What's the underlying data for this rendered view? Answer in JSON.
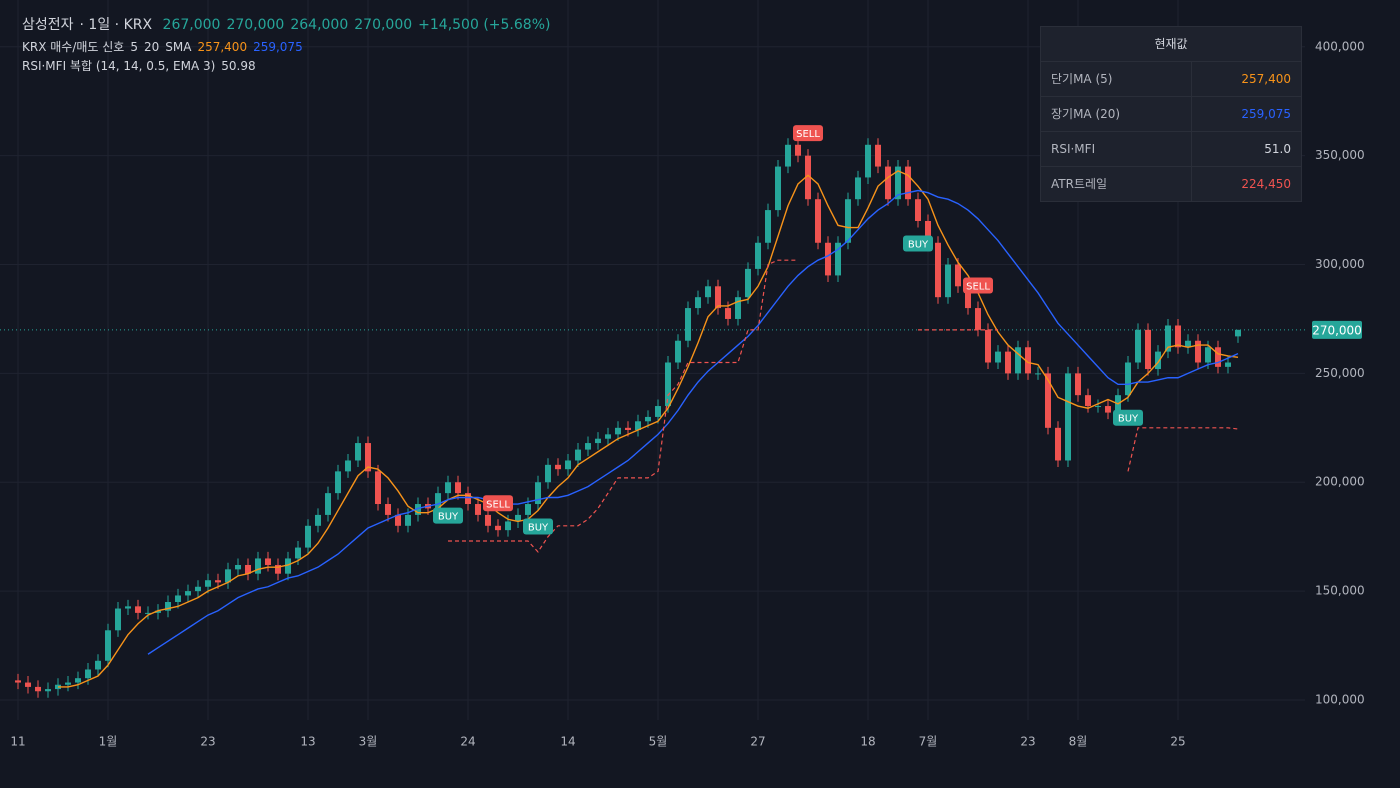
{
  "chart_data": {
    "type": "candlestick",
    "header": {
      "name": "삼성전자",
      "interval": "· 1일 · KRX",
      "open": "267,000",
      "high": "270,000",
      "low": "264,000",
      "close": "270,000",
      "change": "+14,500 (+5.68%)"
    },
    "legend": {
      "name": "KRX 매수/매도 신호",
      "short_len": "5",
      "long_len": "20",
      "ma_type": "SMA",
      "short_value": "257,400",
      "long_value": "259,075"
    },
    "indicator": {
      "name": "RSI·MFI 복합 (14, 14, 0.5, EMA 3)",
      "value": "50.98"
    },
    "table": {
      "title": "현재값",
      "rows": [
        [
          "단기MA (5)",
          "257,400"
        ],
        [
          "장기MA (20)",
          "259,075"
        ],
        [
          "RSI·MFI",
          "51.0"
        ],
        [
          "ATR트레일",
          "224,450"
        ]
      ]
    },
    "up_color": "#26a69a",
    "down_color": "#ef5350",
    "ylim": [
      90800,
      421500
    ],
    "yticks": [
      {
        "value": 100000,
        "label": "100,000"
      },
      {
        "value": 150000,
        "label": "150,000"
      },
      {
        "value": 200000,
        "label": "200,000"
      },
      {
        "value": 250000,
        "label": "250,000"
      },
      {
        "value": 300000,
        "label": "300,000"
      },
      {
        "value": 350000,
        "label": "350,000"
      },
      {
        "value": 400000,
        "label": "400,000"
      }
    ],
    "grid": true,
    "last_price": {
      "value": 270000,
      "label": "270,000"
    },
    "categories": [
      "11",
      null,
      null,
      null,
      null,
      null,
      null,
      null,
      null,
      "1월",
      null,
      null,
      null,
      null,
      null,
      null,
      null,
      null,
      null,
      "23",
      null,
      null,
      null,
      null,
      null,
      null,
      null,
      null,
      null,
      "13",
      null,
      null,
      null,
      null,
      null,
      "3월",
      null,
      null,
      null,
      null,
      null,
      null,
      null,
      null,
      null,
      "24",
      null,
      null,
      null,
      null,
      null,
      null,
      null,
      null,
      null,
      "14",
      null,
      null,
      null,
      null,
      null,
      null,
      null,
      null,
      "5월",
      null,
      null,
      null,
      null,
      null,
      null,
      null,
      null,
      null,
      "27",
      null,
      null,
      null,
      null,
      null,
      null,
      null,
      null,
      null,
      null,
      "18",
      null,
      null,
      null,
      null,
      null,
      "7월",
      null,
      null,
      null,
      null,
      null,
      null,
      null,
      null,
      null,
      "23",
      null,
      null,
      null,
      null,
      "8월",
      null,
      null,
      null,
      null,
      null,
      null,
      null,
      null,
      null,
      "25",
      null,
      null,
      null,
      null,
      null,
      null
    ],
    "open": [
      109000,
      108000,
      106000,
      104000,
      105000,
      107000,
      108000,
      110000,
      114000,
      118000,
      132000,
      142000,
      143000,
      140000,
      140000,
      141000,
      145000,
      148000,
      150000,
      152000,
      155000,
      154000,
      160000,
      162000,
      158000,
      165000,
      162000,
      158000,
      165000,
      170000,
      180000,
      185000,
      195000,
      205000,
      210000,
      218000,
      205000,
      190000,
      185000,
      180000,
      185000,
      190000,
      188000,
      195000,
      200000,
      195000,
      190000,
      185000,
      180000,
      178000,
      182000,
      185000,
      190000,
      200000,
      208000,
      206000,
      210000,
      215000,
      218000,
      220000,
      222000,
      225000,
      224000,
      228000,
      230000,
      235000,
      255000,
      265000,
      280000,
      285000,
      290000,
      280000,
      275000,
      285000,
      298000,
      310000,
      325000,
      345000,
      355000,
      350000,
      330000,
      310000,
      295000,
      310000,
      330000,
      340000,
      355000,
      345000,
      330000,
      345000,
      330000,
      320000,
      310000,
      285000,
      300000,
      290000,
      280000,
      270000,
      255000,
      260000,
      250000,
      262000,
      250000,
      250000,
      225000,
      210000,
      250000,
      240000,
      235000,
      235000,
      232000,
      240000,
      255000,
      270000,
      252000,
      260000,
      272000,
      262000,
      265000,
      255000,
      262000,
      253000,
      267000
    ],
    "high": [
      112000,
      111000,
      109000,
      108000,
      110000,
      111000,
      113000,
      117000,
      121000,
      135000,
      145000,
      146000,
      146000,
      143000,
      144000,
      148000,
      151000,
      153000,
      155000,
      158000,
      158000,
      163000,
      165000,
      165000,
      168000,
      168000,
      165000,
      168000,
      173000,
      183000,
      188000,
      198000,
      208000,
      213000,
      221000,
      221000,
      208000,
      193000,
      188000,
      188000,
      193000,
      193000,
      198000,
      203000,
      203000,
      198000,
      193000,
      188000,
      183000,
      185000,
      188000,
      193000,
      203000,
      211000,
      211000,
      213000,
      218000,
      221000,
      223000,
      225000,
      228000,
      228000,
      231000,
      233000,
      238000,
      258000,
      268000,
      283000,
      288000,
      293000,
      293000,
      283000,
      288000,
      301000,
      313000,
      328000,
      348000,
      358000,
      358000,
      353000,
      333000,
      313000,
      313000,
      333000,
      343000,
      358000,
      358000,
      348000,
      348000,
      348000,
      333000,
      323000,
      313000,
      303000,
      303000,
      293000,
      283000,
      273000,
      263000,
      263000,
      265000,
      265000,
      253000,
      253000,
      228000,
      253000,
      253000,
      243000,
      238000,
      238000,
      243000,
      258000,
      273000,
      273000,
      263000,
      275000,
      275000,
      268000,
      268000,
      265000,
      265000,
      258000,
      270000
    ],
    "low": [
      105000,
      103000,
      101000,
      101000,
      102000,
      104000,
      105000,
      107000,
      111000,
      115000,
      129000,
      139000,
      137000,
      137000,
      137000,
      138000,
      142000,
      145000,
      147000,
      149000,
      151000,
      151000,
      157000,
      155000,
      155000,
      159000,
      155000,
      155000,
      162000,
      167000,
      177000,
      182000,
      192000,
      202000,
      207000,
      202000,
      187000,
      182000,
      177000,
      177000,
      182000,
      185000,
      185000,
      192000,
      192000,
      187000,
      182000,
      177000,
      175000,
      175000,
      179000,
      182000,
      187000,
      197000,
      203000,
      203000,
      207000,
      212000,
      215000,
      217000,
      219000,
      221000,
      221000,
      225000,
      227000,
      232000,
      252000,
      262000,
      277000,
      282000,
      277000,
      272000,
      272000,
      282000,
      295000,
      307000,
      322000,
      342000,
      347000,
      327000,
      307000,
      292000,
      292000,
      307000,
      327000,
      337000,
      342000,
      327000,
      327000,
      327000,
      317000,
      307000,
      282000,
      282000,
      287000,
      277000,
      267000,
      252000,
      252000,
      247000,
      247000,
      247000,
      247000,
      222000,
      207000,
      207000,
      237000,
      232000,
      232000,
      229000,
      229000,
      237000,
      252000,
      249000,
      249000,
      257000,
      259000,
      259000,
      252000,
      252000,
      250000,
      250000,
      264000
    ],
    "close": [
      108000,
      106000,
      104000,
      105000,
      107000,
      108000,
      110000,
      114000,
      118000,
      132000,
      142000,
      143000,
      140000,
      140000,
      141000,
      145000,
      148000,
      150000,
      152000,
      155000,
      154000,
      160000,
      162000,
      158000,
      165000,
      162000,
      158000,
      165000,
      170000,
      180000,
      185000,
      195000,
      205000,
      210000,
      218000,
      205000,
      190000,
      185000,
      180000,
      185000,
      190000,
      188000,
      195000,
      200000,
      195000,
      190000,
      185000,
      180000,
      178000,
      182000,
      185000,
      190000,
      200000,
      208000,
      206000,
      210000,
      215000,
      218000,
      220000,
      222000,
      225000,
      224000,
      228000,
      230000,
      235000,
      255000,
      265000,
      280000,
      285000,
      290000,
      280000,
      275000,
      285000,
      298000,
      310000,
      325000,
      345000,
      355000,
      350000,
      330000,
      310000,
      295000,
      310000,
      330000,
      340000,
      355000,
      345000,
      330000,
      345000,
      330000,
      320000,
      310000,
      285000,
      300000,
      290000,
      280000,
      270000,
      255000,
      260000,
      250000,
      262000,
      250000,
      250000,
      225000,
      210000,
      250000,
      240000,
      235000,
      235000,
      232000,
      240000,
      255000,
      270000,
      252000,
      260000,
      272000,
      262000,
      265000,
      255000,
      262000,
      253000,
      255000,
      270000
    ],
    "lines": [
      {
        "name": "단기MA (5)",
        "color": "#f7931a",
        "dashed": false,
        "values": [
          null,
          null,
          null,
          null,
          106000,
          106000,
          107000,
          109000,
          111000,
          116000,
          123000,
          130000,
          135000,
          139000,
          141000,
          142000,
          143000,
          145000,
          147000,
          150000,
          152000,
          154000,
          157000,
          158000,
          160000,
          161000,
          161000,
          162000,
          164000,
          167000,
          172000,
          179000,
          187000,
          195000,
          203000,
          207000,
          206000,
          202000,
          196000,
          189000,
          186000,
          186000,
          188000,
          192000,
          194000,
          194000,
          192000,
          190000,
          186000,
          183000,
          182000,
          183000,
          187000,
          193000,
          198000,
          202000,
          208000,
          211000,
          214000,
          217000,
          220000,
          222000,
          224000,
          226000,
          228000,
          234000,
          243000,
          253000,
          264000,
          276000,
          281000,
          281000,
          283000,
          284000,
          290000,
          299000,
          313000,
          327000,
          337000,
          341000,
          337000,
          327000,
          318000,
          317000,
          317000,
          326000,
          336000,
          340000,
          343000,
          341000,
          336000,
          330000,
          318000,
          309000,
          301000,
          295000,
          287000,
          277000,
          269000,
          263000,
          259000,
          255000,
          254000,
          247000,
          239000,
          237000,
          235000,
          234000,
          236000,
          238000,
          236000,
          239000,
          246000,
          250000,
          255000,
          262000,
          263000,
          262000,
          263000,
          263000,
          259000,
          258000,
          257400
        ]
      },
      {
        "name": "장기MA (20)",
        "color": "#2962ff",
        "dashed": false,
        "values": [
          null,
          null,
          null,
          null,
          null,
          null,
          null,
          null,
          null,
          null,
          null,
          null,
          null,
          121000,
          124000,
          127000,
          130000,
          133000,
          136000,
          139000,
          141000,
          144000,
          147000,
          149000,
          151000,
          152000,
          154000,
          156000,
          157000,
          159000,
          161000,
          164000,
          167000,
          171000,
          175000,
          179000,
          181000,
          183000,
          185000,
          186000,
          188000,
          189000,
          190000,
          192000,
          193000,
          193000,
          193000,
          192000,
          191000,
          190000,
          190000,
          191000,
          192000,
          193000,
          193000,
          194000,
          196000,
          198000,
          201000,
          204000,
          207000,
          210000,
          214000,
          218000,
          222000,
          227000,
          233000,
          240000,
          246000,
          251000,
          255000,
          259000,
          263000,
          267000,
          272000,
          278000,
          284000,
          290000,
          295000,
          299000,
          302000,
          304000,
          307000,
          311000,
          316000,
          321000,
          325000,
          328000,
          332000,
          333000,
          334000,
          333000,
          331000,
          330000,
          328000,
          325000,
          321000,
          316000,
          311000,
          305000,
          299000,
          293000,
          287000,
          280000,
          273000,
          268000,
          263000,
          258000,
          253000,
          248000,
          245000,
          245000,
          246000,
          246000,
          247000,
          248000,
          248000,
          250000,
          252000,
          254000,
          255000,
          257000,
          259075
        ]
      },
      {
        "name": "ATR트레일",
        "color": "#ef5350",
        "dashed": true,
        "values": [
          null,
          null,
          null,
          null,
          null,
          null,
          null,
          null,
          null,
          null,
          null,
          null,
          null,
          null,
          null,
          null,
          null,
          null,
          null,
          null,
          null,
          null,
          null,
          null,
          null,
          null,
          null,
          null,
          null,
          null,
          null,
          null,
          null,
          null,
          null,
          null,
          null,
          null,
          null,
          null,
          null,
          null,
          null,
          173000,
          173000,
          173000,
          173000,
          173000,
          173000,
          173000,
          173000,
          173000,
          168000,
          175000,
          180000,
          180000,
          180000,
          183000,
          188000,
          195000,
          202000,
          202000,
          202000,
          202000,
          205000,
          240000,
          245000,
          255000,
          255000,
          255000,
          255000,
          255000,
          255000,
          270000,
          270000,
          300000,
          302000,
          302000,
          302000,
          null,
          null,
          null,
          null,
          null,
          null,
          null,
          null,
          null,
          null,
          null,
          270000,
          270000,
          270000,
          270000,
          270000,
          270000,
          270000,
          270000,
          270000,
          null,
          null,
          null,
          null,
          null,
          null,
          null,
          null,
          null,
          null,
          null,
          null,
          205000,
          225000,
          225000,
          225000,
          225000,
          225000,
          225000,
          225000,
          225000,
          225000,
          225000,
          224450
        ]
      }
    ],
    "signals": [
      null,
      null,
      null,
      null,
      null,
      null,
      null,
      null,
      null,
      null,
      null,
      null,
      null,
      null,
      null,
      null,
      null,
      null,
      null,
      null,
      null,
      null,
      null,
      null,
      null,
      null,
      null,
      null,
      null,
      null,
      null,
      null,
      null,
      null,
      null,
      null,
      null,
      null,
      null,
      null,
      null,
      null,
      null,
      "BUY",
      null,
      null,
      null,
      null,
      "SELL",
      null,
      null,
      null,
      "BUY",
      null,
      null,
      null,
      null,
      null,
      null,
      null,
      null,
      null,
      null,
      null,
      null,
      null,
      null,
      null,
      null,
      null,
      null,
      null,
      null,
      null,
      null,
      null,
      null,
      null,
      null,
      "SELL",
      null,
      null,
      null,
      null,
      null,
      null,
      null,
      null,
      null,
      null,
      "BUY",
      null,
      null,
      null,
      null,
      null,
      "SELL",
      null,
      null,
      null,
      null,
      null,
      null,
      null,
      null,
      null,
      null,
      null,
      null,
      null,
      null,
      "BUY",
      null,
      null,
      null,
      null,
      null,
      null,
      null,
      null,
      null,
      null,
      null
    ]
  }
}
